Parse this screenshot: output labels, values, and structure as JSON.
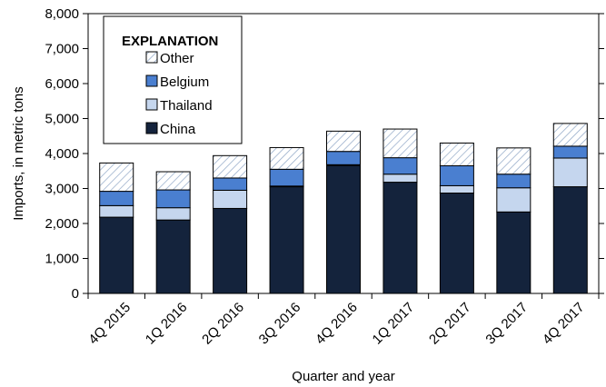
{
  "chart_data": {
    "type": "bar",
    "stacked": true,
    "title": "",
    "xlabel": "Quarter and year",
    "ylabel": "Imports, in metric tons",
    "ylim": [
      0,
      8000
    ],
    "yticks": [
      0,
      1000,
      2000,
      3000,
      4000,
      5000,
      6000,
      7000,
      8000
    ],
    "ytick_labels": [
      "0",
      "1,000",
      "2,000",
      "3,000",
      "4,000",
      "5,000",
      "6,000",
      "7,000",
      "8,000"
    ],
    "categories": [
      "4Q 2015",
      "1Q 2016",
      "2Q 2016",
      "3Q 2016",
      "4Q 2016",
      "1Q 2017",
      "2Q 2017",
      "3Q 2017",
      "4Q 2017"
    ],
    "grid": false,
    "legend": {
      "title": "EXPLANATION",
      "placement": "top-left"
    },
    "series": [
      {
        "name": "China",
        "color": "#14233c",
        "pattern": "solid",
        "values": [
          2180,
          2100,
          2430,
          3050,
          3660,
          3180,
          2870,
          2330,
          3050
        ]
      },
      {
        "name": "Thailand",
        "color": "#c5d6ee",
        "pattern": "solid",
        "values": [
          330,
          350,
          520,
          20,
          20,
          230,
          210,
          690,
          820
        ]
      },
      {
        "name": "Belgium",
        "color": "#4a7fd0",
        "pattern": "solid",
        "values": [
          410,
          510,
          350,
          480,
          380,
          470,
          570,
          390,
          340
        ]
      },
      {
        "name": "Other",
        "color": "#ffffff",
        "pattern": "hatch",
        "values": [
          810,
          520,
          640,
          620,
          580,
          820,
          650,
          750,
          650
        ]
      }
    ]
  }
}
